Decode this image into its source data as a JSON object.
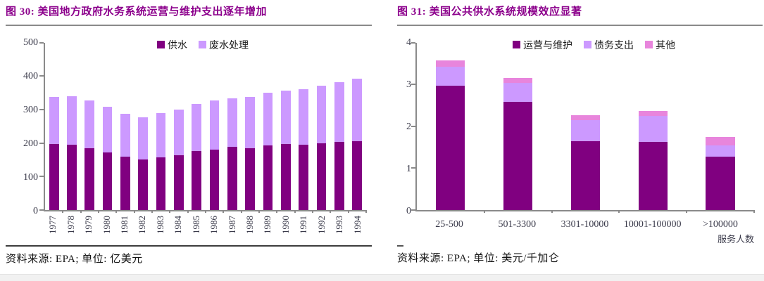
{
  "page": {
    "accent_color": "#8C008C",
    "axis_color": "#8a8a8a",
    "footer_band_color": "#f1f1f1"
  },
  "figures": [
    {
      "id": "figure-30",
      "title": "图 30: 美国地方政府水务系统运营与维护支出逐年增加",
      "source": "资料来源: EPA; 单位: 亿美元",
      "chart_data": {
        "type": "bar",
        "stacked": true,
        "title": "美国地方政府水务系统运营与维护支出逐年增加",
        "categories": [
          "1977",
          "1978",
          "1979",
          "1980",
          "1981",
          "1982",
          "1983",
          "1984",
          "1985",
          "1986",
          "1987",
          "1988",
          "1989",
          "1990",
          "1991",
          "1992",
          "1993",
          "1994"
        ],
        "series": [
          {
            "name": "供水",
            "color": "#800080",
            "values": [
              197,
              194,
              185,
              172,
              160,
              150,
              157,
              163,
              176,
              181,
              188,
              184,
              193,
              197,
              194,
              200,
              203,
              205
            ]
          },
          {
            "name": "废水处理",
            "color": "#CC99FF",
            "values": [
              140,
              146,
              142,
              136,
              127,
              127,
              133,
              137,
              141,
              146,
              146,
              153,
              157,
              160,
              166,
              172,
              179,
              187
            ]
          }
        ],
        "ylim": [
          0,
          500
        ],
        "yticks": [
          0,
          100,
          200,
          300,
          400,
          500
        ],
        "legend_position": "top-center",
        "grid": false,
        "unit": "亿美元",
        "xlabels_rotated": true
      }
    },
    {
      "id": "figure-31",
      "title": "图 31:  美国公共供水系统规模效应显著",
      "source": "资料来源: EPA; 单位: 美元/千加仑",
      "chart_data": {
        "type": "bar",
        "stacked": true,
        "title": "美国公共供水系统规模效应显著",
        "categories": [
          "25-500",
          "501-3300",
          "3301-10000",
          "10001-100000",
          ">100000"
        ],
        "series": [
          {
            "name": "运营与维护",
            "color": "#800080",
            "values": [
              2.97,
              2.58,
              1.65,
              1.62,
              1.27
            ]
          },
          {
            "name": "债务支出",
            "color": "#CC99FF",
            "values": [
              0.45,
              0.45,
              0.5,
              0.63,
              0.28
            ]
          },
          {
            "name": "其他",
            "color": "#E885DC",
            "values": [
              0.15,
              0.12,
              0.12,
              0.12,
              0.2
            ]
          }
        ],
        "ylim": [
          0,
          4
        ],
        "yticks": [
          0,
          1,
          2,
          3,
          4
        ],
        "xlabel": "服务人数",
        "legend_position": "top-center",
        "grid": false,
        "unit": "美元/千加仑",
        "xlabels_rotated": false
      }
    }
  ]
}
